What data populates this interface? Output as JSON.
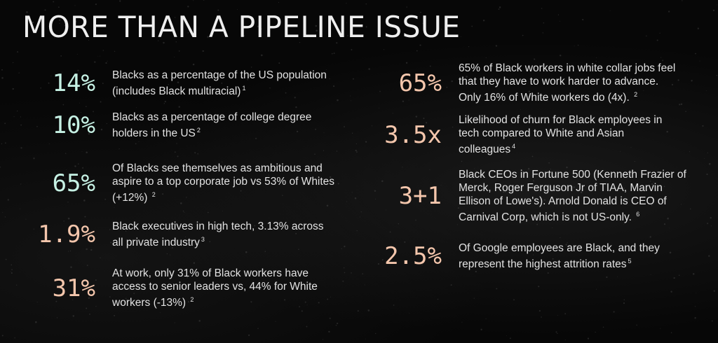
{
  "title": "MORE THAN A PIPELINE ISSUE",
  "colors": {
    "mint": "#c6f1e4",
    "peach": "#f4c6ac",
    "background": "#070707"
  },
  "left_stats": [
    {
      "value": "14%",
      "text": "Blacks as a percentage of the US population (includes Black multiracial)",
      "footnote": "1",
      "color": "mint"
    },
    {
      "value": "10%",
      "text": "Blacks as a percentage of college degree holders in the US",
      "footnote": "2",
      "color": "mint"
    },
    {
      "value": "65%",
      "text": "Of Blacks see themselves as ambitious and aspire to a top corporate job vs 53% of Whites (+12%)",
      "footnote": "2",
      "color": "mint"
    },
    {
      "value": "1.9%",
      "text": "Black executives in high tech, 3.13% across all private industry",
      "footnote": "3",
      "color": "peach"
    },
    {
      "value": "31%",
      "text": "At work, only 31% of Black workers have access to senior leaders vs, 44% for White workers (-13%)",
      "footnote": "2",
      "color": "peach"
    }
  ],
  "right_stats": [
    {
      "value": "65%",
      "text": "65% of Black workers in white collar jobs feel that they have to work harder to advance. Only 16% of White workers do (4x).",
      "footnote": "2",
      "color": "peach"
    },
    {
      "value": "3.5x",
      "text": "Likelihood of churn for Black employees in tech compared to White and Asian colleagues",
      "footnote": "4",
      "color": "peach"
    },
    {
      "value": "3+1",
      "text": "Black CEOs in Fortune 500 (Kenneth Frazier of Merck, Roger Ferguson Jr of TIAA, Marvin Ellison of Lowe's). Arnold Donald is CEO of Carnival Corp, which is not US-only.",
      "footnote": "6",
      "color": "peach"
    },
    {
      "value": "2.5%",
      "text": "Of Google employees are Black, and they represent the highest attrition rates",
      "footnote": "5",
      "color": "peach"
    }
  ]
}
